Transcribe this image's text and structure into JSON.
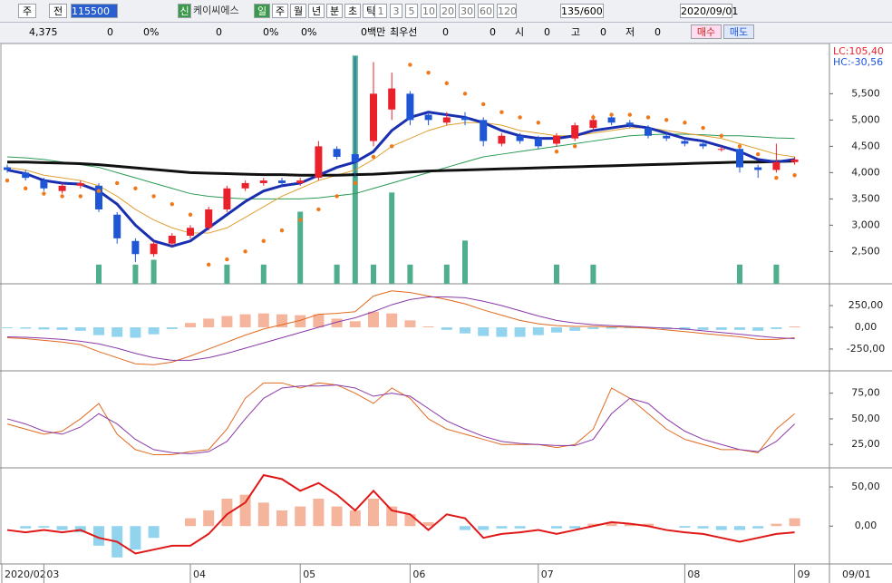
{
  "toolbar": {
    "market": "주",
    "prev": "전",
    "code": "115500",
    "new_badge": "신",
    "name": "케이씨에스",
    "periods": [
      "일",
      "주",
      "월",
      "년",
      "분",
      "초",
      "틱"
    ],
    "intervals": [
      "1",
      "3",
      "5",
      "10",
      "20",
      "30",
      "60",
      "120"
    ],
    "count": "135/600",
    "date": "2020/09/01"
  },
  "info_bar": {
    "items": [
      "4,375",
      "0",
      "0%",
      "0",
      "0%",
      "0%",
      "0백만",
      "최우선",
      "0",
      "0",
      "시",
      "0",
      "고",
      "0",
      "저",
      "0"
    ],
    "buy": "매수",
    "sell": "매도"
  },
  "chart_data": [
    {
      "type": "candlestick",
      "categories": [
        "2020/02",
        null,
        "03",
        null,
        null,
        null,
        null,
        null,
        null,
        null,
        "04",
        null,
        null,
        null,
        null,
        null,
        "05",
        null,
        null,
        null,
        null,
        null,
        "06",
        null,
        null,
        null,
        null,
        null,
        null,
        "07",
        null,
        null,
        null,
        null,
        null,
        null,
        null,
        "08",
        null,
        null,
        null,
        null,
        null,
        "09"
      ],
      "x_end_label": "09/01",
      "open": [
        4100,
        4000,
        3850,
        3650,
        3750,
        3750,
        3200,
        2700,
        2450,
        2650,
        2800,
        2950,
        3300,
        3700,
        3800,
        3850,
        3800,
        3900,
        4450,
        4350,
        4600,
        5200,
        5500,
        5100,
        4950,
        5050,
        5000,
        4550,
        4700,
        4650,
        4550,
        4650,
        4850,
        5050,
        4950,
        4850,
        4700,
        4600,
        4550,
        4450,
        4450,
        4100,
        4050,
        4200
      ],
      "high": [
        4150,
        4050,
        3900,
        3800,
        3850,
        3800,
        3250,
        2750,
        2700,
        2850,
        3000,
        3350,
        3750,
        3850,
        3900,
        3900,
        3900,
        4600,
        4500,
        6200,
        6100,
        5900,
        5550,
        5150,
        5150,
        5150,
        5050,
        4750,
        4750,
        4700,
        4750,
        4950,
        5100,
        5100,
        5000,
        4900,
        4750,
        4650,
        4600,
        4500,
        4500,
        4150,
        4550,
        4300
      ],
      "low": [
        4000,
        3850,
        3650,
        3600,
        3700,
        3250,
        2650,
        2300,
        2400,
        2600,
        2750,
        2900,
        3250,
        3650,
        3750,
        3750,
        3750,
        3850,
        4250,
        3900,
        4500,
        5000,
        4900,
        4900,
        4900,
        4900,
        4500,
        4500,
        4550,
        4450,
        4500,
        4600,
        4800,
        4900,
        4850,
        4650,
        4600,
        4500,
        4450,
        4400,
        4000,
        3900,
        4000,
        4150
      ],
      "close": [
        4050,
        3900,
        3700,
        3750,
        3800,
        3300,
        2750,
        2450,
        2650,
        2800,
        2950,
        3300,
        3700,
        3800,
        3850,
        3800,
        3850,
        4500,
        4300,
        4200,
        5500,
        5600,
        5000,
        5000,
        5050,
        5000,
        4600,
        4700,
        4600,
        4500,
        4700,
        4900,
        5000,
        4950,
        4900,
        4700,
        4650,
        4550,
        4500,
        4450,
        4100,
        4050,
        4200,
        4250
      ],
      "up_color": "#e8212b",
      "down_color": "#1f56d6",
      "series": [
        {
          "color": "#2a9a52",
          "width": 1,
          "values": [
            4300,
            4280,
            4250,
            4200,
            4150,
            4100,
            4000,
            3900,
            3800,
            3700,
            3600,
            3550,
            3520,
            3500,
            3500,
            3500,
            3500,
            3520,
            3560,
            3600,
            3700,
            3800,
            3900,
            4000,
            4100,
            4200,
            4300,
            4350,
            4400,
            4450,
            4500,
            4550,
            4600,
            4650,
            4700,
            4720,
            4730,
            4730,
            4720,
            4700,
            4700,
            4680,
            4660,
            4650
          ]
        },
        {
          "color": "#e0a030",
          "width": 1,
          "values": [
            4100,
            4050,
            3950,
            3900,
            3850,
            3750,
            3550,
            3300,
            3100,
            2950,
            2850,
            2850,
            2950,
            3150,
            3350,
            3550,
            3700,
            3850,
            3950,
            4050,
            4250,
            4500,
            4650,
            4800,
            4900,
            4950,
            4950,
            4900,
            4800,
            4750,
            4700,
            4700,
            4750,
            4800,
            4850,
            4850,
            4800,
            4750,
            4700,
            4650,
            4550,
            4450,
            4350,
            4300
          ]
        },
        {
          "color": "#111111",
          "width": 3,
          "values": [
            4200,
            4200,
            4190,
            4180,
            4170,
            4150,
            4120,
            4090,
            4060,
            4030,
            4000,
            3990,
            3980,
            3970,
            3960,
            3960,
            3950,
            3950,
            3950,
            3960,
            3970,
            3990,
            4010,
            4030,
            4040,
            4050,
            4060,
            4070,
            4080,
            4090,
            4100,
            4110,
            4120,
            4130,
            4140,
            4150,
            4160,
            4170,
            4180,
            4190,
            4200,
            4200,
            4210,
            4220
          ]
        },
        {
          "color": "#1a2fb0",
          "width": 3,
          "values": [
            4050,
            3980,
            3850,
            3800,
            3780,
            3650,
            3400,
            3000,
            2700,
            2600,
            2700,
            2950,
            3200,
            3450,
            3650,
            3750,
            3800,
            3950,
            4100,
            4200,
            4400,
            4800,
            5050,
            5150,
            5100,
            5050,
            4950,
            4800,
            4700,
            4650,
            4650,
            4700,
            4800,
            4850,
            4900,
            4850,
            4750,
            4650,
            4600,
            4500,
            4400,
            4250,
            4200,
            4250
          ]
        }
      ],
      "sar": {
        "color": "#f07818",
        "values": [
          3850,
          3700,
          3600,
          3550,
          3550,
          3650,
          3800,
          3700,
          3550,
          3400,
          3200,
          2250,
          2350,
          2500,
          2700,
          2900,
          3100,
          3300,
          3550,
          3800,
          4300,
          4500,
          6050,
          5900,
          5700,
          5500,
          5300,
          5150,
          5050,
          4950,
          4400,
          4500,
          5050,
          5100,
          5100,
          5050,
          5000,
          4950,
          4850,
          4700,
          4500,
          4350,
          3900,
          3950
        ]
      },
      "volume": {
        "color": "#4fae8c",
        "ylim": [
          0,
          100
        ],
        "values": [
          0,
          0,
          0,
          0,
          0,
          8,
          0,
          8,
          10,
          0,
          0,
          0,
          8,
          0,
          8,
          0,
          30,
          0,
          8,
          95,
          8,
          38,
          8,
          0,
          8,
          18,
          0,
          0,
          0,
          0,
          8,
          0,
          8,
          0,
          0,
          0,
          0,
          0,
          0,
          0,
          8,
          0,
          8,
          0
        ]
      },
      "ylim": [
        1920,
        6420
      ],
      "yticks": [
        {
          "value": 2500,
          "label": "2,500"
        },
        {
          "value": 3000,
          "label": "3,000"
        },
        {
          "value": 3500,
          "label": "3,500"
        },
        {
          "value": 4000,
          "label": "4,000"
        },
        {
          "value": 4500,
          "label": "4,500"
        },
        {
          "value": 5000,
          "label": "5,000"
        },
        {
          "value": 5500,
          "label": "5,500"
        }
      ],
      "annotations": [
        {
          "text": "LC:105,40",
          "color": "#e8212b"
        },
        {
          "text": "HC:-30,56",
          "color": "#1f56d6"
        }
      ]
    },
    {
      "type": "line",
      "series": [
        {
          "color": "#e06a20",
          "values": [
            -120,
            -130,
            -150,
            -170,
            -200,
            -280,
            -350,
            -420,
            -430,
            -400,
            -330,
            -250,
            -170,
            -90,
            -20,
            30,
            80,
            150,
            160,
            180,
            360,
            420,
            400,
            360,
            320,
            270,
            200,
            140,
            80,
            40,
            20,
            10,
            10,
            5,
            0,
            -10,
            -30,
            -50,
            -70,
            -90,
            -110,
            -140,
            -140,
            -120
          ]
        },
        {
          "color": "#8a3aa8",
          "values": [
            -110,
            -115,
            -125,
            -140,
            -160,
            -190,
            -240,
            -300,
            -350,
            -380,
            -380,
            -350,
            -300,
            -240,
            -180,
            -120,
            -60,
            0,
            60,
            110,
            180,
            260,
            320,
            350,
            350,
            340,
            300,
            250,
            190,
            130,
            80,
            50,
            30,
            20,
            10,
            0,
            -10,
            -20,
            -40,
            -60,
            -80,
            -100,
            -120,
            -130
          ]
        }
      ],
      "histogram": {
        "pos_color": "#f5b49c",
        "neg_color": "#92d4ee",
        "values": [
          -10,
          -15,
          -25,
          -30,
          -40,
          -90,
          -110,
          -120,
          -80,
          -20,
          50,
          100,
          130,
          150,
          160,
          150,
          140,
          150,
          100,
          70,
          180,
          160,
          80,
          10,
          -30,
          -70,
          -100,
          -110,
          -110,
          -90,
          -60,
          -40,
          -20,
          -15,
          -10,
          -10,
          -20,
          -30,
          -30,
          -30,
          -30,
          -40,
          -20,
          10
        ]
      },
      "ylim": [
        -480,
        480
      ],
      "yticks": [
        {
          "value": -250,
          "label": "-250,00"
        },
        {
          "value": 0,
          "label": "0,00"
        },
        {
          "value": 250,
          "label": "250,00"
        }
      ]
    },
    {
      "type": "line",
      "series": [
        {
          "color": "#e06a20",
          "values": [
            45,
            40,
            35,
            38,
            50,
            65,
            35,
            20,
            15,
            15,
            18,
            20,
            40,
            70,
            85,
            85,
            80,
            85,
            83,
            75,
            65,
            80,
            70,
            50,
            40,
            35,
            30,
            25,
            25,
            25,
            22,
            25,
            40,
            80,
            70,
            55,
            40,
            30,
            25,
            20,
            20,
            17,
            40,
            55
          ]
        },
        {
          "color": "#8a3aa8",
          "values": [
            50,
            45,
            38,
            35,
            42,
            55,
            45,
            30,
            20,
            17,
            16,
            18,
            28,
            50,
            70,
            80,
            82,
            82,
            83,
            80,
            72,
            75,
            72,
            60,
            48,
            40,
            33,
            28,
            26,
            25,
            24,
            24,
            30,
            55,
            70,
            65,
            50,
            38,
            30,
            25,
            20,
            18,
            28,
            45
          ]
        }
      ],
      "ylim": [
        4,
        95
      ],
      "yticks": [
        {
          "value": 25,
          "label": "25,00"
        },
        {
          "value": 50,
          "label": "50,00"
        },
        {
          "value": 75,
          "label": "75,00"
        }
      ]
    },
    {
      "type": "line",
      "series": [
        {
          "color": "#e01818",
          "width": 2,
          "values": [
            -5,
            -8,
            -5,
            -8,
            -5,
            -15,
            -20,
            -35,
            -30,
            -25,
            -25,
            -10,
            15,
            30,
            65,
            60,
            45,
            55,
            40,
            20,
            45,
            20,
            15,
            -5,
            15,
            10,
            -15,
            -10,
            -8,
            -5,
            -10,
            -5,
            0,
            5,
            3,
            0,
            -5,
            -8,
            -10,
            -15,
            -20,
            -15,
            -10,
            -8
          ]
        }
      ],
      "histogram": {
        "pos_color": "#f5b49c",
        "neg_color": "#92d4ee",
        "values": [
          0,
          -3,
          -2,
          -5,
          -8,
          -25,
          -40,
          -30,
          -15,
          0,
          10,
          20,
          35,
          40,
          30,
          20,
          25,
          35,
          25,
          20,
          35,
          25,
          15,
          5,
          0,
          -5,
          -5,
          -3,
          -3,
          0,
          -3,
          -3,
          3,
          5,
          3,
          3,
          0,
          -2,
          -3,
          -5,
          -5,
          -3,
          3,
          10
        ]
      },
      "ylim": [
        -46,
        72
      ],
      "yticks": [
        {
          "value": 0,
          "label": "0,00"
        },
        {
          "value": 50,
          "label": "50,00"
        }
      ]
    }
  ]
}
